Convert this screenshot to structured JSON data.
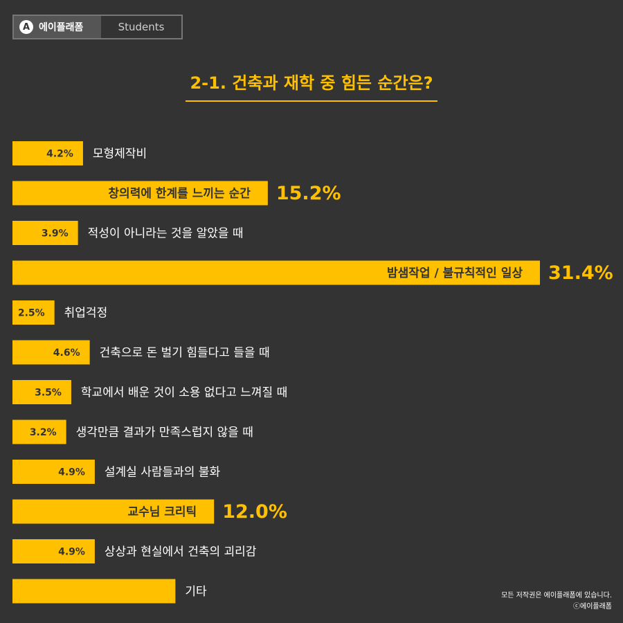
{
  "badge": {
    "logo": "A",
    "brand": "에이플래폼",
    "section": "Students"
  },
  "chart_data": {
    "type": "bar",
    "orientation": "horizontal",
    "title": "2-1. 건축과 재학 중 힘든 순간은?",
    "xlim": [
      0,
      31.4
    ],
    "categories": [
      "모형제작비",
      "창의력에 한계를 느끼는 순간",
      "적성이 아니라는 것을 알았을 때",
      "밤샘작업 / 불규칙적인 일상",
      "취업걱정",
      "건축으로 돈 벌기 힘들다고 들을 때",
      "학교에서 배운 것이 소용 없다고 느껴질 때",
      "생각만큼 결과가 만족스럽지 않을 때",
      "설계실 사람들과의 불화",
      "교수님 크리틱",
      "상상과 현실에서 건축의 괴리감",
      "기타"
    ],
    "values": [
      4.2,
      15.2,
      3.9,
      31.4,
      2.5,
      4.6,
      3.5,
      3.2,
      4.9,
      12.0,
      4.9,
      9.7
    ],
    "value_labels": [
      "4.2%",
      "15.2%",
      "3.9%",
      "31.4%",
      "2.5%",
      "4.6%",
      "3.5%",
      "3.2%",
      "4.9%",
      "12.0%",
      "4.9%",
      ""
    ],
    "highlight": [
      false,
      true,
      false,
      true,
      false,
      false,
      false,
      false,
      false,
      true,
      false,
      false
    ],
    "bar_color": "#ffc000",
    "text_color": "#ffffff",
    "dark_text_color": "#333333"
  },
  "footer": {
    "line1": "모든 저작권은 에이플래폼에 있습니다.",
    "line2": "ⓒ에이플래폼"
  }
}
